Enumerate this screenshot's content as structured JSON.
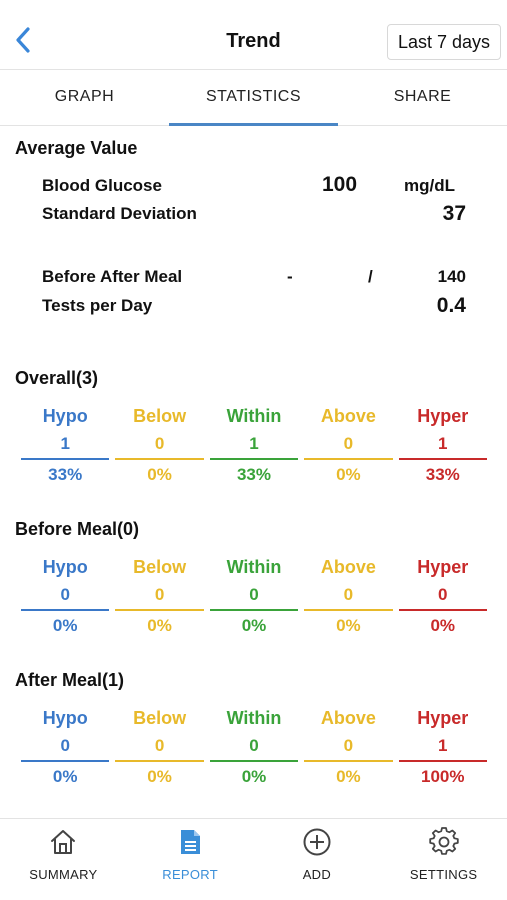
{
  "header": {
    "title": "Trend",
    "range_label": "Last 7 days"
  },
  "tabs": [
    {
      "label": "GRAPH",
      "active": false
    },
    {
      "label": "STATISTICS",
      "active": true
    },
    {
      "label": "SHARE",
      "active": false
    }
  ],
  "average": {
    "title": "Average Value",
    "blood_glucose_label": "Blood Glucose",
    "blood_glucose_value": "100",
    "blood_glucose_unit": "mg/dL",
    "std_dev_label": "Standard Deviation",
    "std_dev_value": "37",
    "before_after_label": "Before After Meal",
    "before_value": "-",
    "separator": "/",
    "after_value": "140",
    "tests_per_day_label": "Tests per Day",
    "tests_per_day_value": "0.4"
  },
  "category_labels": {
    "hypo": "Hypo",
    "below": "Below",
    "within": "Within",
    "above": "Above",
    "hyper": "Hyper"
  },
  "overall": {
    "title": "Overall(3)",
    "counts": {
      "hypo": "1",
      "below": "0",
      "within": "1",
      "above": "0",
      "hyper": "1"
    },
    "percents": {
      "hypo": "33%",
      "below": "0%",
      "within": "33%",
      "above": "0%",
      "hyper": "33%"
    }
  },
  "before_meal": {
    "title": "Before Meal(0)",
    "counts": {
      "hypo": "0",
      "below": "0",
      "within": "0",
      "above": "0",
      "hyper": "0"
    },
    "percents": {
      "hypo": "0%",
      "below": "0%",
      "within": "0%",
      "above": "0%",
      "hyper": "0%"
    }
  },
  "after_meal": {
    "title": "After Meal(1)",
    "counts": {
      "hypo": "0",
      "below": "0",
      "within": "0",
      "above": "0",
      "hyper": "1"
    },
    "percents": {
      "hypo": "0%",
      "below": "0%",
      "within": "0%",
      "above": "0%",
      "hyper": "100%"
    }
  },
  "nav": {
    "summary": "SUMMARY",
    "report": "REPORT",
    "add": "ADD",
    "settings": "SETTINGS"
  },
  "colors": {
    "accent": "#4a86c5",
    "hypo": "#3a78c8",
    "below": "#e8b92a",
    "within": "#3aa33a",
    "above": "#e8b92a",
    "hyper": "#c82a2a"
  },
  "icons": {
    "back": "chevron-left-icon",
    "summary": "home-icon",
    "report": "document-icon",
    "add": "plus-circle-icon",
    "settings": "gear-icon"
  }
}
